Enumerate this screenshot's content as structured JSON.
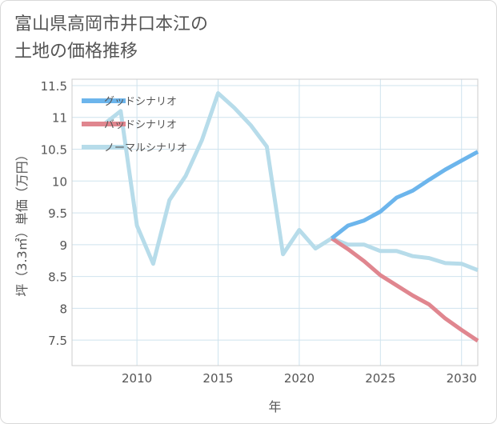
{
  "title_lines": [
    "富山県高岡市井口本江の",
    "土地の価格推移"
  ],
  "chart_data": {
    "type": "line",
    "title": "富山県高岡市井口本江の土地の価格推移",
    "xlabel": "年",
    "ylabel": "坪（3.3㎡）単価（万円）",
    "xlim": [
      2006,
      2031
    ],
    "ylim": [
      7.1,
      11.6
    ],
    "x_ticks": [
      2010,
      2015,
      2020,
      2025,
      2030
    ],
    "y_ticks": [
      7.5,
      8,
      8.5,
      9,
      9.5,
      10,
      10.5,
      11,
      11.5
    ],
    "grid": true,
    "legend_position": "top-left",
    "series": [
      {
        "name": "グッドシナリオ",
        "color": "#6cb5ec",
        "x": [
          2022,
          2023,
          2024,
          2025,
          2026,
          2027,
          2028,
          2029,
          2030,
          2031
        ],
        "y": [
          9.1,
          9.3,
          9.38,
          9.52,
          9.74,
          9.85,
          10.02,
          10.18,
          10.32,
          10.46
        ]
      },
      {
        "name": "バッドシナリオ",
        "color": "#e0868f",
        "x": [
          2022,
          2023,
          2024,
          2025,
          2026,
          2027,
          2028,
          2029,
          2030,
          2031
        ],
        "y": [
          9.1,
          8.93,
          8.74,
          8.52,
          8.36,
          8.2,
          8.06,
          7.84,
          7.66,
          7.49
        ]
      },
      {
        "name": "ノーマルシナリオ",
        "color": "#b7dcea",
        "x": [
          2008,
          2009,
          2010,
          2011,
          2012,
          2013,
          2014,
          2015,
          2016,
          2017,
          2018,
          2019,
          2020,
          2021,
          2022,
          2023,
          2024,
          2025,
          2026,
          2027,
          2028,
          2029,
          2030,
          2031
        ],
        "y": [
          10.9,
          11.1,
          9.3,
          8.7,
          9.7,
          10.08,
          10.64,
          11.38,
          11.15,
          10.88,
          10.54,
          8.85,
          9.23,
          8.94,
          9.1,
          9.0,
          9.0,
          8.9,
          8.9,
          8.82,
          8.79,
          8.71,
          8.7,
          8.6
        ]
      }
    ]
  }
}
